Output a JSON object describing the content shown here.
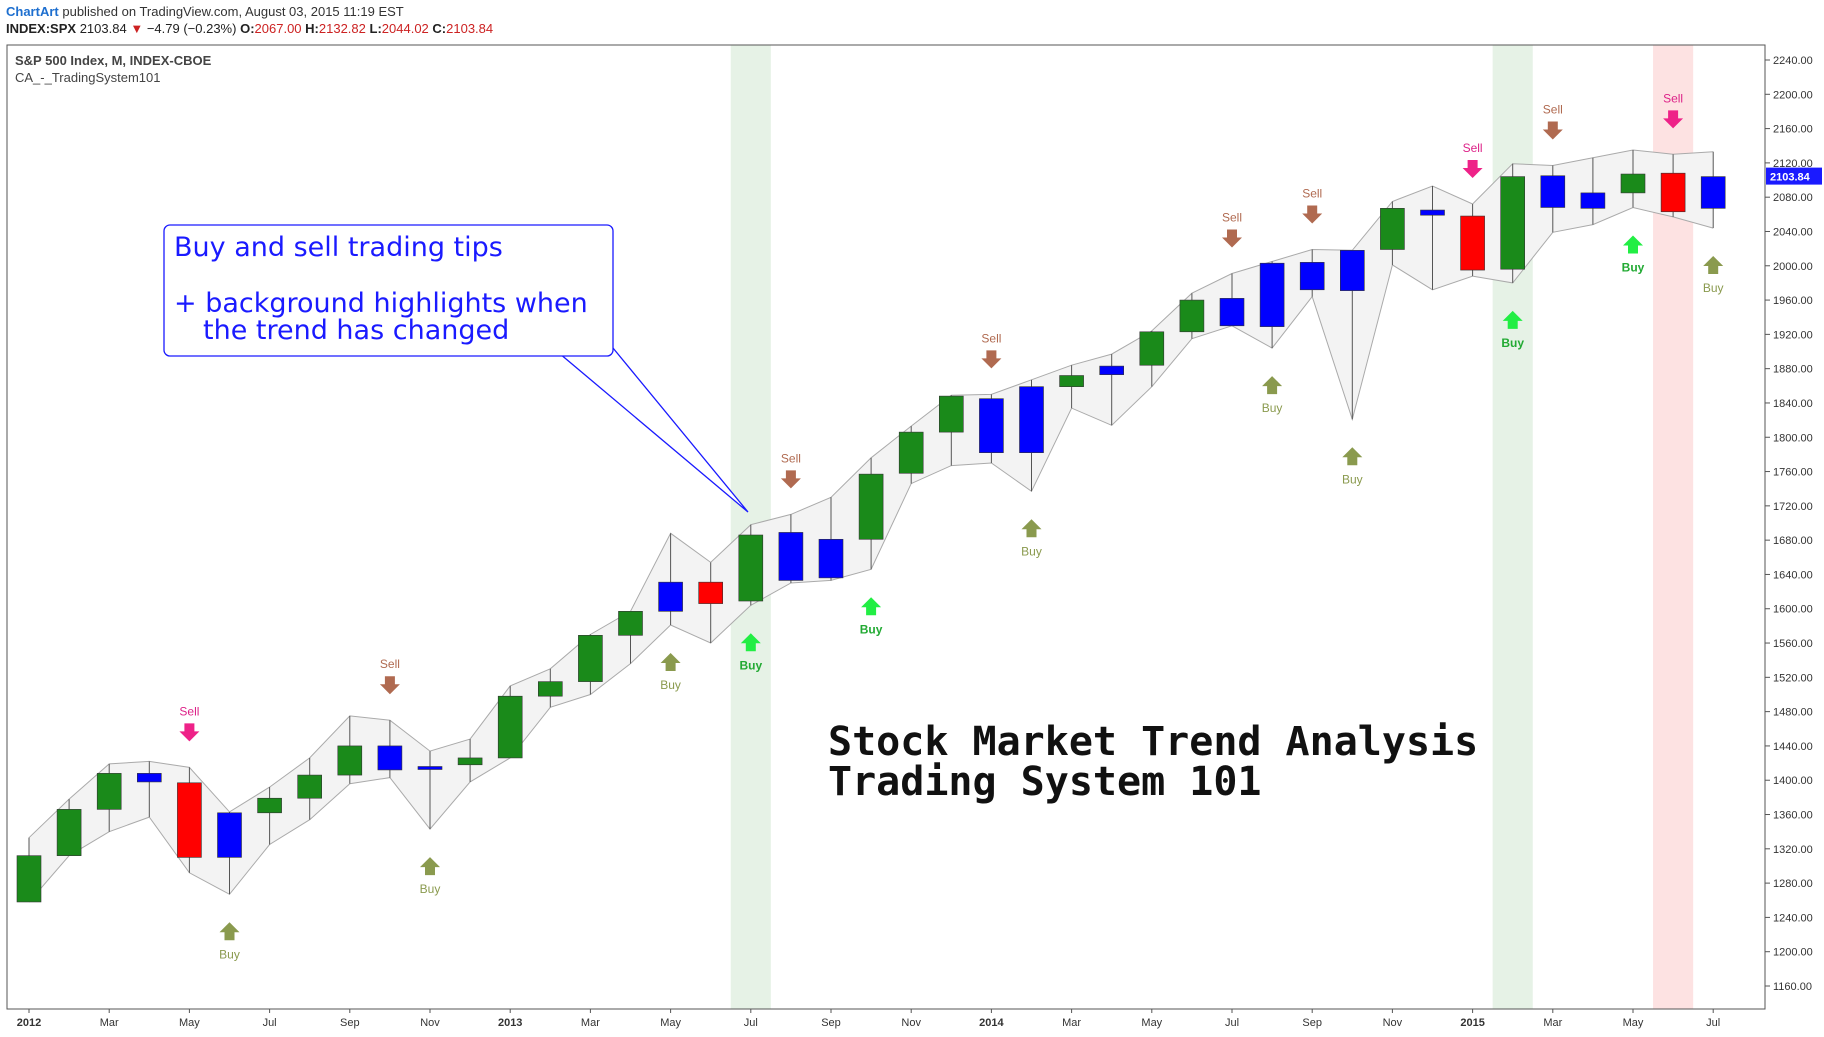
{
  "header": {
    "brand": "ChartArt",
    "published": "published on TradingView.com, August 03, 2015 11:19 EST",
    "symbol": "INDEX:SPX",
    "last": "2103.84",
    "change": "−4.79 (−0.23%)",
    "o_label": "O:",
    "o_value": "2067.00",
    "h_label": "H:",
    "h_value": "2132.82",
    "l_label": "L:",
    "l_value": "2044.02",
    "c_label": "C:",
    "c_value": "2103.84"
  },
  "legend": {
    "series_name": "S&P 500 Index, M, INDEX-CBOE",
    "indicator_name": "CA_-_TradingSystem101"
  },
  "callout": {
    "line1": "Buy and sell trading tips",
    "line2": "+ background highlights when",
    "line3": "the trend has changed"
  },
  "headline": {
    "line1": "Stock Market Trend Analysis",
    "line2": "Trading System 101"
  },
  "price_label": "2103.84",
  "signal_labels": {
    "buy": "Buy",
    "sell": "Sell"
  },
  "colors": {
    "up": "#1a8a1a",
    "down": "#ff0000",
    "continuation": "#0000ff",
    "buy_arrow": "#8a9a4e",
    "buy_arrow_strong": "#22ee44",
    "sell_arrow": "#b06a50",
    "sell_arrow_strong": "#ee2288",
    "highlight_green": "#e6f2e6",
    "highlight_red": "#fde2e2",
    "callout_text": "#1a1aff"
  },
  "chart_data": {
    "type": "candlestick",
    "title": "S&P 500 Index, M, INDEX-CBOE",
    "ylim": [
      1120,
      2260
    ],
    "y_ticks": [
      1160,
      1200,
      1240,
      1280,
      1320,
      1360,
      1400,
      1440,
      1480,
      1520,
      1560,
      1600,
      1640,
      1680,
      1720,
      1760,
      1800,
      1840,
      1880,
      1920,
      1960,
      2000,
      2040,
      2080,
      2120,
      2160,
      2200,
      2240
    ],
    "x_tick_labels": [
      {
        "i": 0,
        "label": "2012",
        "bold": true
      },
      {
        "i": 2,
        "label": "Mar"
      },
      {
        "i": 4,
        "label": "May"
      },
      {
        "i": 6,
        "label": "Jul"
      },
      {
        "i": 8,
        "label": "Sep"
      },
      {
        "i": 10,
        "label": "Nov"
      },
      {
        "i": 12,
        "label": "2013",
        "bold": true
      },
      {
        "i": 14,
        "label": "Mar"
      },
      {
        "i": 16,
        "label": "May"
      },
      {
        "i": 18,
        "label": "Jul"
      },
      {
        "i": 20,
        "label": "Sep"
      },
      {
        "i": 22,
        "label": "Nov"
      },
      {
        "i": 24,
        "label": "2014",
        "bold": true
      },
      {
        "i": 26,
        "label": "Mar"
      },
      {
        "i": 28,
        "label": "May"
      },
      {
        "i": 30,
        "label": "Jul"
      },
      {
        "i": 32,
        "label": "Sep"
      },
      {
        "i": 34,
        "label": "Nov"
      },
      {
        "i": 36,
        "label": "2015",
        "bold": true
      },
      {
        "i": 38,
        "label": "Mar"
      },
      {
        "i": 40,
        "label": "May"
      },
      {
        "i": 42,
        "label": "Jul"
      }
    ],
    "candles": [
      {
        "m": "2012-01",
        "o": 1258,
        "h": 1333,
        "l": 1258,
        "c": 1312,
        "color": "up"
      },
      {
        "m": "2012-02",
        "o": 1312,
        "h": 1378,
        "l": 1312,
        "c": 1366,
        "color": "up"
      },
      {
        "m": "2012-03",
        "o": 1366,
        "h": 1419,
        "l": 1340,
        "c": 1408,
        "color": "up"
      },
      {
        "m": "2012-04",
        "o": 1408,
        "h": 1422,
        "l": 1357,
        "c": 1398,
        "color": "continuation"
      },
      {
        "m": "2012-05",
        "o": 1397,
        "h": 1415,
        "l": 1292,
        "c": 1310,
        "color": "down"
      },
      {
        "m": "2012-06",
        "o": 1310,
        "h": 1363,
        "l": 1267,
        "c": 1362,
        "color": "continuation"
      },
      {
        "m": "2012-07",
        "o": 1362,
        "h": 1392,
        "l": 1325,
        "c": 1379,
        "color": "up"
      },
      {
        "m": "2012-08",
        "o": 1379,
        "h": 1426,
        "l": 1354,
        "c": 1406,
        "color": "up"
      },
      {
        "m": "2012-09",
        "o": 1406,
        "h": 1475,
        "l": 1396,
        "c": 1440,
        "color": "up"
      },
      {
        "m": "2012-10",
        "o": 1440,
        "h": 1470,
        "l": 1403,
        "c": 1412,
        "color": "continuation"
      },
      {
        "m": "2012-11",
        "o": 1414,
        "h": 1434,
        "l": 1343,
        "c": 1416,
        "color": "continuation"
      },
      {
        "m": "2012-12",
        "o": 1418,
        "h": 1448,
        "l": 1398,
        "c": 1426,
        "color": "up"
      },
      {
        "m": "2013-01",
        "o": 1426,
        "h": 1510,
        "l": 1426,
        "c": 1498,
        "color": "up"
      },
      {
        "m": "2013-02",
        "o": 1498,
        "h": 1530,
        "l": 1485,
        "c": 1515,
        "color": "up"
      },
      {
        "m": "2013-03",
        "o": 1515,
        "h": 1570,
        "l": 1500,
        "c": 1569,
        "color": "up"
      },
      {
        "m": "2013-04",
        "o": 1569,
        "h": 1597,
        "l": 1536,
        "c": 1597,
        "color": "up"
      },
      {
        "m": "2013-05",
        "o": 1597,
        "h": 1688,
        "l": 1581,
        "c": 1631,
        "color": "continuation"
      },
      {
        "m": "2013-06",
        "o": 1631,
        "h": 1654,
        "l": 1560,
        "c": 1606,
        "color": "down"
      },
      {
        "m": "2013-07",
        "o": 1609,
        "h": 1698,
        "l": 1604,
        "c": 1686,
        "color": "up"
      },
      {
        "m": "2013-08",
        "o": 1689,
        "h": 1710,
        "l": 1630,
        "c": 1633,
        "color": "continuation"
      },
      {
        "m": "2013-09",
        "o": 1636,
        "h": 1730,
        "l": 1633,
        "c": 1681,
        "color": "continuation"
      },
      {
        "m": "2013-10",
        "o": 1681,
        "h": 1776,
        "l": 1646,
        "c": 1757,
        "color": "up"
      },
      {
        "m": "2013-11",
        "o": 1758,
        "h": 1813,
        "l": 1746,
        "c": 1806,
        "color": "up"
      },
      {
        "m": "2013-12",
        "o": 1806,
        "h": 1849,
        "l": 1767,
        "c": 1848,
        "color": "up"
      },
      {
        "m": "2014-01",
        "o": 1845,
        "h": 1850,
        "l": 1770,
        "c": 1782,
        "color": "continuation"
      },
      {
        "m": "2014-02",
        "o": 1782,
        "h": 1867,
        "l": 1737,
        "c": 1859,
        "color": "continuation"
      },
      {
        "m": "2014-03",
        "o": 1859,
        "h": 1884,
        "l": 1834,
        "c": 1872,
        "color": "up"
      },
      {
        "m": "2014-04",
        "o": 1873,
        "h": 1897,
        "l": 1814,
        "c": 1883,
        "color": "continuation"
      },
      {
        "m": "2014-05",
        "o": 1884,
        "h": 1924,
        "l": 1859,
        "c": 1923,
        "color": "up"
      },
      {
        "m": "2014-06",
        "o": 1923,
        "h": 1968,
        "l": 1915,
        "c": 1960,
        "color": "up"
      },
      {
        "m": "2014-07",
        "o": 1962,
        "h": 1991,
        "l": 1930,
        "c": 1930,
        "color": "continuation"
      },
      {
        "m": "2014-08",
        "o": 1929,
        "h": 2005,
        "l": 1904,
        "c": 2003,
        "color": "continuation"
      },
      {
        "m": "2014-09",
        "o": 2004,
        "h": 2019,
        "l": 1964,
        "c": 1972,
        "color": "continuation"
      },
      {
        "m": "2014-10",
        "o": 1971,
        "h": 2018,
        "l": 1821,
        "c": 2018,
        "color": "continuation"
      },
      {
        "m": "2014-11",
        "o": 2019,
        "h": 2075,
        "l": 2001,
        "c": 2067,
        "color": "up"
      },
      {
        "m": "2014-12",
        "o": 2065,
        "h": 2093,
        "l": 1972,
        "c": 2059,
        "color": "continuation"
      },
      {
        "m": "2015-01",
        "o": 2058,
        "h": 2072,
        "l": 1988,
        "c": 1995,
        "color": "down"
      },
      {
        "m": "2015-02",
        "o": 1996,
        "h": 2119,
        "l": 1980,
        "c": 2104,
        "color": "up"
      },
      {
        "m": "2015-03",
        "o": 2105,
        "h": 2117,
        "l": 2039,
        "c": 2068,
        "color": "continuation"
      },
      {
        "m": "2015-04",
        "o": 2067,
        "h": 2126,
        "l": 2048,
        "c": 2085,
        "color": "continuation"
      },
      {
        "m": "2015-05",
        "o": 2085,
        "h": 2135,
        "l": 2068,
        "c": 2107,
        "color": "up"
      },
      {
        "m": "2015-06",
        "o": 2108,
        "h": 2130,
        "l": 2057,
        "c": 2063,
        "color": "down"
      },
      {
        "m": "2015-07",
        "o": 2067,
        "h": 2133,
        "l": 2044,
        "c": 2104,
        "color": "continuation"
      }
    ],
    "highlights": [
      {
        "i": 18,
        "color": "green"
      },
      {
        "i": 37,
        "color": "green"
      },
      {
        "i": 41,
        "color": "red"
      }
    ],
    "signals": [
      {
        "i": 4,
        "type": "sell",
        "strong": true
      },
      {
        "i": 5,
        "type": "buy",
        "strong": false
      },
      {
        "i": 9,
        "type": "sell",
        "strong": false
      },
      {
        "i": 10,
        "type": "buy",
        "strong": false
      },
      {
        "i": 16,
        "type": "buy",
        "strong": false
      },
      {
        "i": 18,
        "type": "buy",
        "strong": true
      },
      {
        "i": 19,
        "type": "sell",
        "strong": false
      },
      {
        "i": 21,
        "type": "buy",
        "strong": true
      },
      {
        "i": 24,
        "type": "sell",
        "strong": false
      },
      {
        "i": 25,
        "type": "buy",
        "strong": false
      },
      {
        "i": 30,
        "type": "sell",
        "strong": false
      },
      {
        "i": 31,
        "type": "buy",
        "strong": false
      },
      {
        "i": 32,
        "type": "sell",
        "strong": false
      },
      {
        "i": 33,
        "type": "buy",
        "strong": false
      },
      {
        "i": 36,
        "type": "sell",
        "strong": true
      },
      {
        "i": 37,
        "type": "buy",
        "strong": true
      },
      {
        "i": 38,
        "type": "sell",
        "strong": false
      },
      {
        "i": 40,
        "type": "buy",
        "strong": true
      },
      {
        "i": 41,
        "type": "sell",
        "strong": true
      },
      {
        "i": 42,
        "type": "buy",
        "strong": false
      }
    ]
  }
}
